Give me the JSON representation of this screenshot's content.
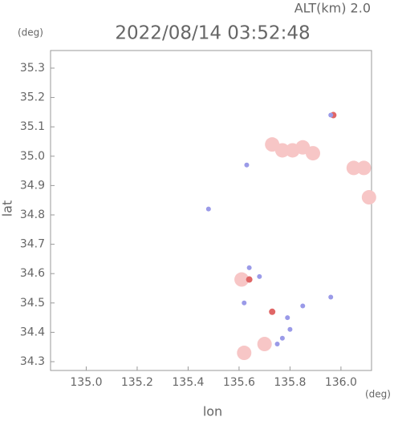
{
  "chart_data": {
    "type": "scatter",
    "title": "2022/08/14 03:52:48",
    "annotations": [
      "ALT(km) 2.0"
    ],
    "x_label": "lon",
    "y_label": "lat",
    "x_unit": "(deg)",
    "y_unit": "(deg)",
    "xlim": [
      134.86,
      136.12
    ],
    "ylim": [
      34.27,
      35.36
    ],
    "xticks": [
      {
        "value": 135.0,
        "label": "135.0"
      },
      135.2,
      135.4,
      135.6,
      135.8,
      {
        "value": 136.0,
        "label": "136.0"
      }
    ],
    "yticks": [
      35.3,
      35.2,
      35.1,
      {
        "value": 35.0,
        "label": "35.0"
      },
      34.9,
      34.8,
      34.7,
      34.6,
      34.5,
      34.4,
      34.3
    ],
    "series": [
      {
        "color": "#f7c6c6",
        "x": [
          135.73,
          135.77,
          135.81,
          135.85,
          135.89,
          136.05,
          136.09,
          136.11,
          135.61,
          135.7,
          135.62
        ],
        "values": [
          35.04,
          35.02,
          35.02,
          35.03,
          35.01,
          34.96,
          34.96,
          34.86,
          34.58,
          34.36,
          34.33
        ]
      },
      {
        "color": "#e06666",
        "x": [
          135.97,
          135.64,
          135.73
        ],
        "values": [
          35.14,
          34.58,
          34.47
        ]
      },
      {
        "color": "#9a9ae8",
        "x": [
          135.79,
          135.77,
          135.75,
          135.64,
          135.96,
          135.85,
          135.62,
          135.96,
          135.63,
          135.48,
          135.68,
          135.8
        ],
        "values": [
          34.45,
          34.38,
          34.36,
          34.62,
          34.52,
          34.49,
          34.5,
          35.14,
          34.97,
          34.82,
          34.59,
          34.41
        ]
      }
    ]
  }
}
